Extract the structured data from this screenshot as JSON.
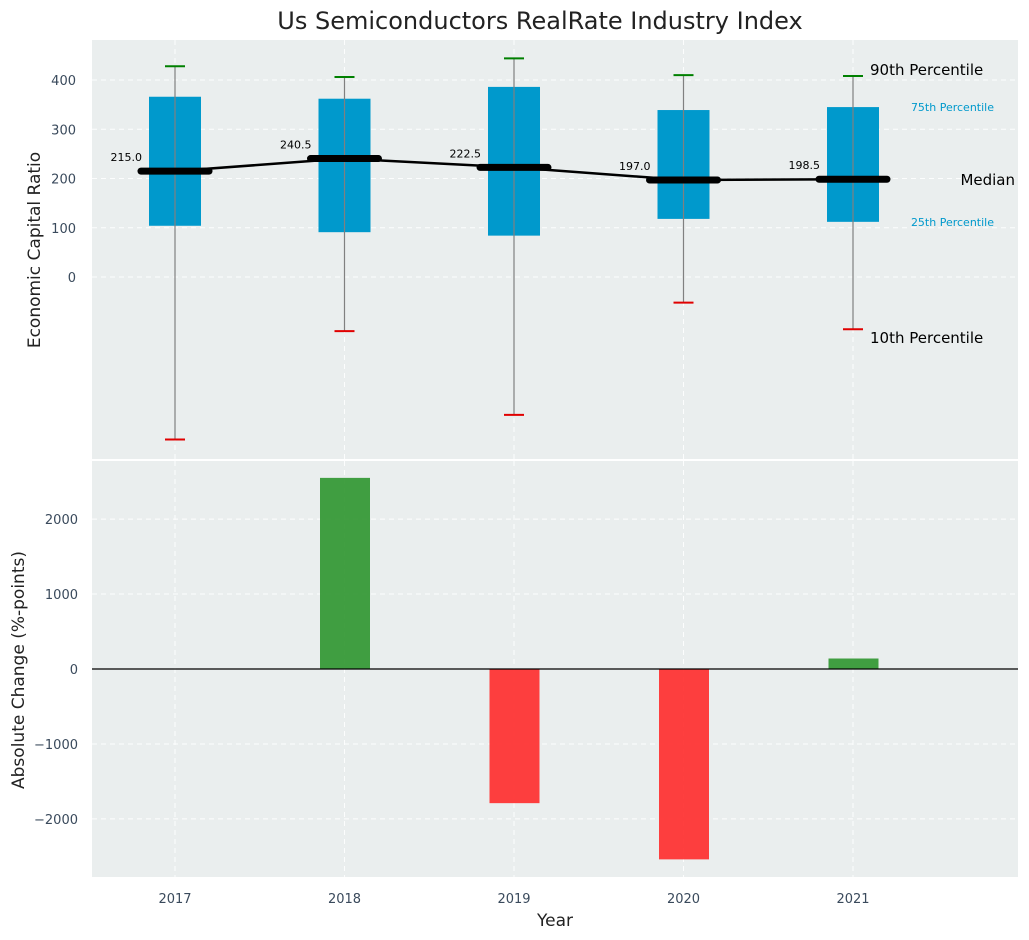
{
  "chart_data": [
    {
      "type": "box",
      "title": "Us Semiconductors RealRate Industry Index",
      "ylabel": "Economic Capital Ratio",
      "categories": [
        "2017",
        "2018",
        "2019",
        "2020",
        "2021"
      ],
      "ylim": [
        -360,
        485
      ],
      "yticks": [
        0,
        100,
        200,
        300,
        400
      ],
      "grid": true,
      "boxes": [
        {
          "year": "2017",
          "p10": -330,
          "p25": 104,
          "median": 215.0,
          "p75": 366,
          "p90": 428
        },
        {
          "year": "2018",
          "p10": -110,
          "p25": 91,
          "median": 240.5,
          "p75": 362,
          "p90": 406
        },
        {
          "year": "2019",
          "p10": -280,
          "p25": 84,
          "median": 222.5,
          "p75": 386,
          "p90": 444
        },
        {
          "year": "2020",
          "p10": -52,
          "p25": 118,
          "median": 197.0,
          "p75": 339,
          "p90": 410
        },
        {
          "year": "2021",
          "p10": -106,
          "p25": 112,
          "median": 198.5,
          "p75": 345,
          "p90": 408
        }
      ],
      "median_labels": [
        "215.0",
        "240.5",
        "222.5",
        "197.0",
        "198.5"
      ],
      "annotations": {
        "p90": "90th Percentile",
        "p75": "75th Percentile",
        "median": "Median",
        "p25": "25th Percentile",
        "p10": "10th Percentile"
      },
      "colors": {
        "box": "#0099cc",
        "median": "#000000",
        "p90_cap": "#008000",
        "p10_cap": "#e00000",
        "whisker": "#808080"
      }
    },
    {
      "type": "bar",
      "ylabel": "Absolute Change (%-points)",
      "xlabel": "Year",
      "categories": [
        "2017",
        "2018",
        "2019",
        "2020",
        "2021"
      ],
      "values": [
        0,
        2550,
        -1790,
        -2540,
        140
      ],
      "ylim": [
        -2800,
        2900
      ],
      "yticks": [
        -2000,
        -1000,
        0,
        1000,
        2000
      ],
      "ytick_labels": [
        "−2000",
        "−1000",
        "0",
        "1000",
        "2000"
      ],
      "grid": true,
      "colors": {
        "positive": "#2e952e",
        "negative": "#ff2a2a"
      }
    }
  ]
}
